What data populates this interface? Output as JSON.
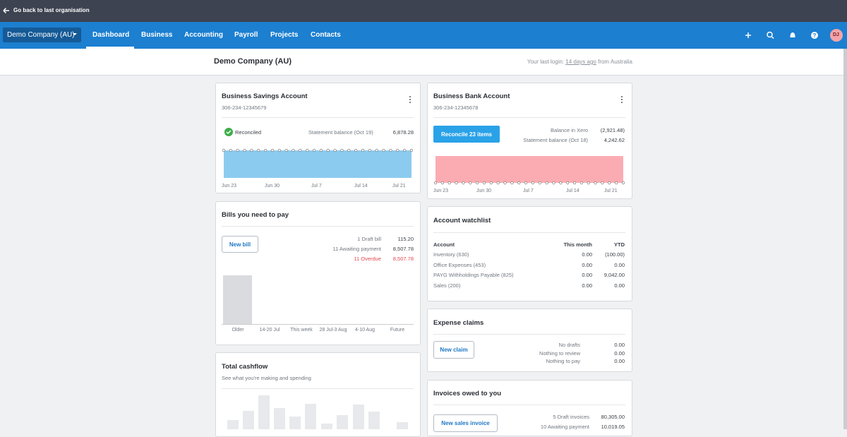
{
  "topbar": {
    "back": "Go back to last organisation"
  },
  "nav": {
    "org": "Demo Company (AU)",
    "items": [
      "Dashboard",
      "Business",
      "Accounting",
      "Payroll",
      "Projects",
      "Contacts"
    ],
    "avatar": "DJ"
  },
  "header": {
    "title": "Demo Company (AU)",
    "last_login": {
      "prefix": "Your last login:",
      "link": "14 days ago",
      "suffix": "from Australia"
    }
  },
  "savings": {
    "title": "Business Savings Account",
    "number": "306-234-12345679",
    "status": "Reconciled",
    "balance_label": "Statement balance (Oct 19)",
    "balance": "6,878.28",
    "dates": [
      "Jun 23",
      "Jun 30",
      "Jul 7",
      "Jul 14",
      "Jul 21"
    ]
  },
  "bank": {
    "title": "Business Bank Account",
    "number": "306-234-12345678",
    "button": "Reconcile 23 items",
    "rows": [
      [
        "Balance in Xero",
        "(2,921.48)"
      ],
      [
        "Statement balance (Oct 18)",
        "4,242.62"
      ]
    ],
    "dates": [
      "Jun 23",
      "Jun 30",
      "Jul 7",
      "Jul 14",
      "Jul 21"
    ]
  },
  "bills": {
    "title": "Bills you need to pay",
    "button": "New bill",
    "rows": [
      [
        "1 Draft bill",
        "115.20"
      ],
      [
        "11 Awaiting payment",
        "8,507.78"
      ],
      [
        "11 Overdue",
        "8,507.78"
      ]
    ],
    "categories": [
      "Older",
      "14-20 Jul",
      "This week",
      "28 Jul-3 Aug",
      "4-10 Aug",
      "Future"
    ]
  },
  "cashflow": {
    "title": "Total cashflow",
    "subtitle": "See what you're making and spending"
  },
  "watchlist": {
    "title": "Account watchlist",
    "columns": [
      "Account",
      "This month",
      "YTD"
    ],
    "rows": [
      [
        "Inventory (630)",
        "0.00",
        "(100.00)"
      ],
      [
        "Office Expenses (453)",
        "0.00",
        "0.00"
      ],
      [
        "PAYG Withholdings Payable (825)",
        "0.00",
        "9,042.00"
      ],
      [
        "Sales (200)",
        "0.00",
        "0.00"
      ]
    ]
  },
  "expenses": {
    "title": "Expense claims",
    "button": "New claim",
    "rows": [
      [
        "No drafts",
        "0.00"
      ],
      [
        "Nothing to review",
        "0.00"
      ],
      [
        "Nothing to pay",
        "0.00"
      ]
    ]
  },
  "invoices": {
    "title": "Invoices owed to you",
    "button": "New sales invoice",
    "rows": [
      [
        "5 Draft invoices",
        "80,305.00"
      ],
      [
        "10 Awaiting payment",
        "10,019.05"
      ]
    ]
  }
}
